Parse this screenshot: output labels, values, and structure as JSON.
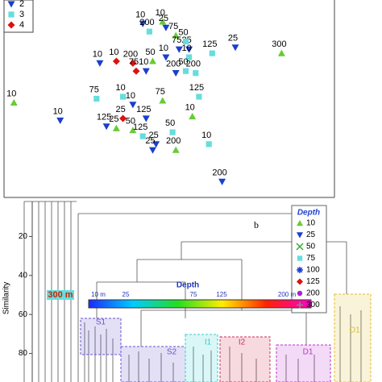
{
  "chart_data": [
    {
      "type": "scatter",
      "xlim": [
        0,
        100
      ],
      "ylim": [
        0,
        100
      ],
      "series": [
        {
          "name": null,
          "color": "#66cc33",
          "marker": "triangle-up",
          "x": [
            48,
            52,
            84,
            45,
            3,
            48,
            57,
            39,
            52,
            34
          ],
          "y": [
            89,
            82,
            73,
            69,
            48,
            49,
            41,
            34,
            24,
            35
          ],
          "labels": [
            "10",
            "75",
            "300",
            "50",
            "10",
            "75",
            "10",
            "50",
            "200",
            "25"
          ]
        },
        {
          "name": "2",
          "color": "#1a3fcc",
          "marker": "triangle-down",
          "x": [
            42,
            49,
            53,
            56,
            70,
            29,
            49,
            43,
            52,
            39,
            17,
            31,
            43,
            46,
            66,
            45
          ],
          "y": [
            88,
            86,
            75,
            75,
            76,
            68,
            71,
            64,
            63,
            47,
            39,
            36,
            40,
            27,
            8,
            24
          ],
          "labels": [
            "10",
            "25",
            "75",
            "25",
            "25",
            "10",
            "10",
            "10",
            "200",
            "10",
            "10",
            "125",
            "125",
            "25",
            "200",
            "25"
          ]
        },
        {
          "name": "3",
          "color": "#66dddd",
          "marker": "square",
          "x": [
            44,
            55,
            63,
            56,
            55,
            58,
            28,
            36,
            59,
            42,
            51,
            62
          ],
          "y": [
            84,
            79,
            73,
            71,
            64,
            63,
            50,
            51,
            51,
            31,
            33,
            27
          ],
          "labels": [
            "200",
            "50",
            "125",
            "10",
            "50",
            "200",
            "75",
            "10",
            "125",
            "125",
            "50",
            "10"
          ]
        },
        {
          "name": "4",
          "color": "#dd1111",
          "marker": "diamond",
          "x": [
            34,
            39,
            40,
            36
          ],
          "y": [
            69,
            68,
            64,
            40
          ],
          "labels": [
            "10",
            "200",
            "75",
            "25"
          ]
        }
      ]
    },
    {
      "type": "dendrogram",
      "y_label": "Similarity",
      "panel_label": "b",
      "ylim": [
        0,
        100
      ],
      "yticks": [
        20,
        40,
        60,
        80
      ],
      "annotation": "300 m",
      "legend": {
        "title": "Depth",
        "entries": [
          {
            "label": "10",
            "color": "#66cc33",
            "marker": "triangle-up"
          },
          {
            "label": "25",
            "color": "#1a3fcc",
            "marker": "triangle-down"
          },
          {
            "label": "50",
            "color": "#33aa33",
            "marker": "cross"
          },
          {
            "label": "75",
            "color": "#66dddd",
            "marker": "square"
          },
          {
            "label": "100",
            "color": "#1a3fcc",
            "marker": "asterisk"
          },
          {
            "label": "125",
            "color": "#dd1111",
            "marker": "diamond"
          },
          {
            "label": "200",
            "color": "#aa22cc",
            "marker": "circle"
          },
          {
            "label": "300",
            "color": "#888888",
            "marker": "plus"
          }
        ]
      },
      "colorbar": {
        "title": "Depth",
        "labels": [
          "10 m",
          "25",
          "75",
          "125",
          "200 m"
        ],
        "colors": [
          "#1a2aff",
          "#00ccff",
          "#22dd22",
          "#ffee00",
          "#ff2200",
          "#ff00cc"
        ]
      },
      "clusters": [
        {
          "label": "S1",
          "color": "#6655cc"
        },
        {
          "label": "S2",
          "color": "#6655cc"
        },
        {
          "label": "I1",
          "color": "#33cccc"
        },
        {
          "label": "I2",
          "color": "#cc3355"
        },
        {
          "label": "D1",
          "color": "#bb33cc"
        },
        {
          "label": "O1",
          "color": "#ddbb33"
        }
      ]
    }
  ]
}
